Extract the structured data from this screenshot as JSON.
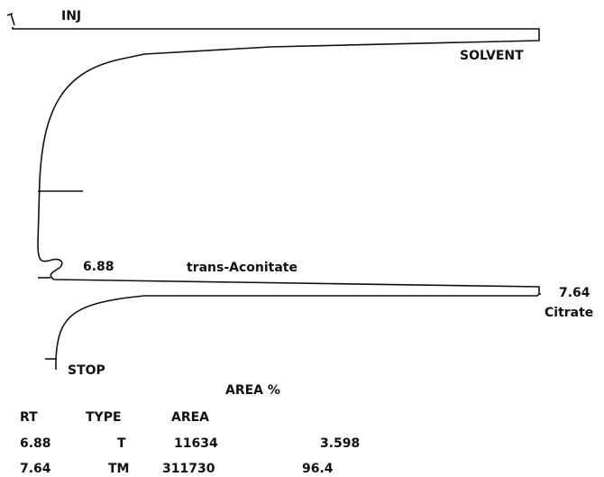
{
  "labels": {
    "injection": "INJ",
    "solvent": "SOLVENT",
    "stop": "STOP"
  },
  "peaks": [
    {
      "retention_time": 6.88,
      "name": "trans-Aconitate"
    },
    {
      "retention_time": 7.64,
      "name": "Citrate"
    }
  ],
  "report": {
    "title": "AREA %",
    "columns": [
      "RT",
      "TYPE",
      "AREA"
    ],
    "rows": [
      [
        6.88,
        "T",
        11634,
        3.598
      ],
      [
        7.64,
        "TM",
        311730,
        96.4
      ]
    ]
  }
}
